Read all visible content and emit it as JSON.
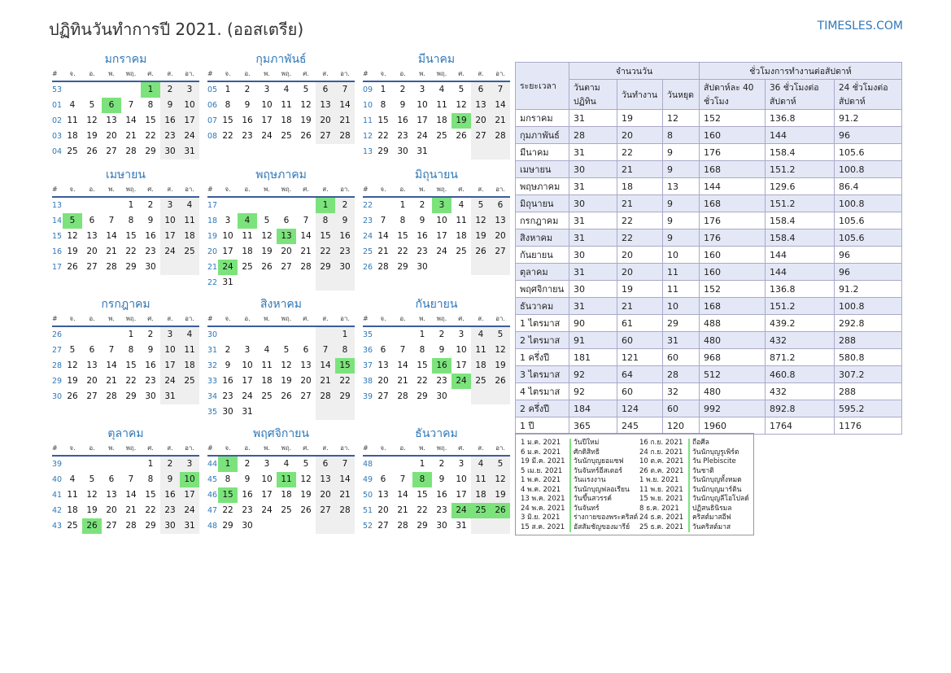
{
  "header": {
    "title": "ปฏิทินวันทำการปี 2021. (ออสเตรีย)",
    "site": "TIMESLES.COM"
  },
  "colors": {
    "accent": "#2f78b8",
    "holiday": "#7ce37c",
    "weekend": "#efefef",
    "rule": "#3b5d9b"
  },
  "weekdays": [
    "#",
    "จ.",
    "อ.",
    "พ.",
    "พฤ.",
    "ศ.",
    "ส.",
    "อา."
  ],
  "months": [
    {
      "name": "มกราคม",
      "rows": [
        [
          "53",
          "",
          "",
          "",
          "",
          "1",
          "2",
          "3"
        ],
        [
          "01",
          "4",
          "5",
          "6",
          "7",
          "8",
          "9",
          "10"
        ],
        [
          "02",
          "11",
          "12",
          "13",
          "14",
          "15",
          "16",
          "17"
        ],
        [
          "03",
          "18",
          "19",
          "20",
          "21",
          "22",
          "23",
          "24"
        ],
        [
          "04",
          "25",
          "26",
          "27",
          "28",
          "29",
          "30",
          "31"
        ]
      ],
      "hol": [
        "0-5",
        "1-3"
      ]
    },
    {
      "name": "กุมภาพันธ์",
      "rows": [
        [
          "05",
          "1",
          "2",
          "3",
          "4",
          "5",
          "6",
          "7"
        ],
        [
          "06",
          "8",
          "9",
          "10",
          "11",
          "12",
          "13",
          "14"
        ],
        [
          "07",
          "15",
          "16",
          "17",
          "18",
          "19",
          "20",
          "21"
        ],
        [
          "08",
          "22",
          "23",
          "24",
          "25",
          "26",
          "27",
          "28"
        ]
      ],
      "hol": []
    },
    {
      "name": "มีนาคม",
      "rows": [
        [
          "09",
          "1",
          "2",
          "3",
          "4",
          "5",
          "6",
          "7"
        ],
        [
          "10",
          "8",
          "9",
          "10",
          "11",
          "12",
          "13",
          "14"
        ],
        [
          "11",
          "15",
          "16",
          "17",
          "18",
          "19",
          "20",
          "21"
        ],
        [
          "12",
          "22",
          "23",
          "24",
          "25",
          "26",
          "27",
          "28"
        ],
        [
          "13",
          "29",
          "30",
          "31",
          "",
          "",
          "",
          ""
        ]
      ],
      "hol": [
        "2-5"
      ]
    },
    {
      "name": "เมษายน",
      "rows": [
        [
          "13",
          "",
          "",
          "",
          "1",
          "2",
          "3",
          "4"
        ],
        [
          "14",
          "5",
          "6",
          "7",
          "8",
          "9",
          "10",
          "11"
        ],
        [
          "15",
          "12",
          "13",
          "14",
          "15",
          "16",
          "17",
          "18"
        ],
        [
          "16",
          "19",
          "20",
          "21",
          "22",
          "23",
          "24",
          "25"
        ],
        [
          "17",
          "26",
          "27",
          "28",
          "29",
          "30",
          "",
          ""
        ]
      ],
      "hol": [
        "1-1"
      ]
    },
    {
      "name": "พฤษภาคม",
      "rows": [
        [
          "17",
          "",
          "",
          "",
          "",
          "",
          "1",
          "2"
        ],
        [
          "18",
          "3",
          "4",
          "5",
          "6",
          "7",
          "8",
          "9"
        ],
        [
          "19",
          "10",
          "11",
          "12",
          "13",
          "14",
          "15",
          "16"
        ],
        [
          "20",
          "17",
          "18",
          "19",
          "20",
          "21",
          "22",
          "23"
        ],
        [
          "21",
          "24",
          "25",
          "26",
          "27",
          "28",
          "29",
          "30"
        ],
        [
          "22",
          "31",
          "",
          "",
          "",
          "",
          "",
          ""
        ]
      ],
      "hol": [
        "0-6",
        "1-2",
        "2-4",
        "4-1"
      ]
    },
    {
      "name": "มิถุนายน",
      "rows": [
        [
          "22",
          "",
          "1",
          "2",
          "3",
          "4",
          "5",
          "6"
        ],
        [
          "23",
          "7",
          "8",
          "9",
          "10",
          "11",
          "12",
          "13"
        ],
        [
          "24",
          "14",
          "15",
          "16",
          "17",
          "18",
          "19",
          "20"
        ],
        [
          "25",
          "21",
          "22",
          "23",
          "24",
          "25",
          "26",
          "27"
        ],
        [
          "26",
          "28",
          "29",
          "30",
          "",
          "",
          "",
          ""
        ]
      ],
      "hol": [
        "0-4"
      ]
    },
    {
      "name": "กรกฎาคม",
      "rows": [
        [
          "26",
          "",
          "",
          "",
          "1",
          "2",
          "3",
          "4"
        ],
        [
          "27",
          "5",
          "6",
          "7",
          "8",
          "9",
          "10",
          "11"
        ],
        [
          "28",
          "12",
          "13",
          "14",
          "15",
          "16",
          "17",
          "18"
        ],
        [
          "29",
          "19",
          "20",
          "21",
          "22",
          "23",
          "24",
          "25"
        ],
        [
          "30",
          "26",
          "27",
          "28",
          "29",
          "30",
          "31",
          ""
        ]
      ],
      "hol": []
    },
    {
      "name": "สิงหาคม",
      "rows": [
        [
          "30",
          "",
          "",
          "",
          "",
          "",
          "",
          "1"
        ],
        [
          "31",
          "2",
          "3",
          "4",
          "5",
          "6",
          "7",
          "8"
        ],
        [
          "32",
          "9",
          "10",
          "11",
          "12",
          "13",
          "14",
          "15"
        ],
        [
          "33",
          "16",
          "17",
          "18",
          "19",
          "20",
          "21",
          "22"
        ],
        [
          "34",
          "23",
          "24",
          "25",
          "26",
          "27",
          "28",
          "29"
        ],
        [
          "35",
          "30",
          "31",
          "",
          "",
          "",
          "",
          ""
        ]
      ],
      "hol": [
        "2-7"
      ]
    },
    {
      "name": "กันยายน",
      "rows": [
        [
          "35",
          "",
          "",
          "1",
          "2",
          "3",
          "4",
          "5"
        ],
        [
          "36",
          "6",
          "7",
          "8",
          "9",
          "10",
          "11",
          "12"
        ],
        [
          "37",
          "13",
          "14",
          "15",
          "16",
          "17",
          "18",
          "19"
        ],
        [
          "38",
          "20",
          "21",
          "22",
          "23",
          "24",
          "25",
          "26"
        ],
        [
          "39",
          "27",
          "28",
          "29",
          "30",
          "",
          "",
          ""
        ]
      ],
      "hol": [
        "2-4",
        "3-5"
      ]
    },
    {
      "name": "ตุลาคม",
      "rows": [
        [
          "39",
          "",
          "",
          "",
          "",
          "1",
          "2",
          "3"
        ],
        [
          "40",
          "4",
          "5",
          "6",
          "7",
          "8",
          "9",
          "10"
        ],
        [
          "41",
          "11",
          "12",
          "13",
          "14",
          "15",
          "16",
          "17"
        ],
        [
          "42",
          "18",
          "19",
          "20",
          "21",
          "22",
          "23",
          "24"
        ],
        [
          "43",
          "25",
          "26",
          "27",
          "28",
          "29",
          "30",
          "31"
        ]
      ],
      "hol": [
        "1-7",
        "4-2"
      ]
    },
    {
      "name": "พฤศจิกายน",
      "rows": [
        [
          "44",
          "1",
          "2",
          "3",
          "4",
          "5",
          "6",
          "7"
        ],
        [
          "45",
          "8",
          "9",
          "10",
          "11",
          "12",
          "13",
          "14"
        ],
        [
          "46",
          "15",
          "16",
          "17",
          "18",
          "19",
          "20",
          "21"
        ],
        [
          "47",
          "22",
          "23",
          "24",
          "25",
          "26",
          "27",
          "28"
        ],
        [
          "48",
          "29",
          "30",
          "",
          "",
          "",
          "",
          ""
        ]
      ],
      "hol": [
        "0-1",
        "1-4",
        "2-1"
      ]
    },
    {
      "name": "ธันวาคม",
      "rows": [
        [
          "48",
          "",
          "",
          "1",
          "2",
          "3",
          "4",
          "5"
        ],
        [
          "49",
          "6",
          "7",
          "8",
          "9",
          "10",
          "11",
          "12"
        ],
        [
          "50",
          "13",
          "14",
          "15",
          "16",
          "17",
          "18",
          "19"
        ],
        [
          "51",
          "20",
          "21",
          "22",
          "23",
          "24",
          "25",
          "26"
        ],
        [
          "52",
          "27",
          "28",
          "29",
          "30",
          "31",
          "",
          ""
        ]
      ],
      "hol": [
        "1-3",
        "3-5",
        "3-6",
        "3-7"
      ]
    }
  ],
  "hours_table": {
    "h_period": "ระยะเวลา",
    "h_days": "จำนวนวัน",
    "h_hours": "ชั่วโมงการทำงานต่อสัปดาห์",
    "h_cal": "วันตามปฏิทิน",
    "h_work": "วันทำงาน",
    "h_off": "วันหยุด",
    "h_40": "สัปดาห์ละ 40 ชั่วโมง",
    "h_36": "36 ชั่วโมงต่อสัปดาห์",
    "h_24": "24 ชั่วโมงต่อสัปดาห์",
    "rows": [
      [
        "มกราคม",
        "31",
        "19",
        "12",
        "152",
        "136.8",
        "91.2"
      ],
      [
        "กุมภาพันธ์",
        "28",
        "20",
        "8",
        "160",
        "144",
        "96"
      ],
      [
        "มีนาคม",
        "31",
        "22",
        "9",
        "176",
        "158.4",
        "105.6"
      ],
      [
        "เมษายน",
        "30",
        "21",
        "9",
        "168",
        "151.2",
        "100.8"
      ],
      [
        "พฤษภาคม",
        "31",
        "18",
        "13",
        "144",
        "129.6",
        "86.4"
      ],
      [
        "มิถุนายน",
        "30",
        "21",
        "9",
        "168",
        "151.2",
        "100.8"
      ],
      [
        "กรกฎาคม",
        "31",
        "22",
        "9",
        "176",
        "158.4",
        "105.6"
      ],
      [
        "สิงหาคม",
        "31",
        "22",
        "9",
        "176",
        "158.4",
        "105.6"
      ],
      [
        "กันยายน",
        "30",
        "20",
        "10",
        "160",
        "144",
        "96"
      ],
      [
        "ตุลาคม",
        "31",
        "20",
        "11",
        "160",
        "144",
        "96"
      ],
      [
        "พฤศจิกายน",
        "30",
        "19",
        "11",
        "152",
        "136.8",
        "91.2"
      ],
      [
        "ธันวาคม",
        "31",
        "21",
        "10",
        "168",
        "151.2",
        "100.8"
      ],
      [
        "1 ไตรมาส",
        "90",
        "61",
        "29",
        "488",
        "439.2",
        "292.8"
      ],
      [
        "2 ไตรมาส",
        "91",
        "60",
        "31",
        "480",
        "432",
        "288"
      ],
      [
        "1 ครึ่งปี",
        "181",
        "121",
        "60",
        "968",
        "871.2",
        "580.8"
      ],
      [
        "3 ไตรมาส",
        "92",
        "64",
        "28",
        "512",
        "460.8",
        "307.2"
      ],
      [
        "4 ไตรมาส",
        "92",
        "60",
        "32",
        "480",
        "432",
        "288"
      ],
      [
        "2 ครึ่งปี",
        "184",
        "124",
        "60",
        "992",
        "892.8",
        "595.2"
      ],
      [
        "1 ปี",
        "365",
        "245",
        "120",
        "1960",
        "1764",
        "1176"
      ]
    ]
  },
  "holidays": [
    [
      "1 ม.ค. 2021",
      "วันปีใหม่"
    ],
    [
      "6 ม.ค. 2021",
      "ศักดิสิทธิ"
    ],
    [
      "19 มี.ค. 2021",
      "วันนักบุญยอแซฟ"
    ],
    [
      "5 เม.ย. 2021",
      "วันจันทร์อีสเตอร์"
    ],
    [
      "1 พ.ค. 2021",
      "วันแรงงาน"
    ],
    [
      "4 พ.ค. 2021",
      "วันนักบุญฟลอเรียน"
    ],
    [
      "13 พ.ค. 2021",
      "วันขึ้นสวรรค์"
    ],
    [
      "24 พ.ค. 2021",
      "วันจันทร์"
    ],
    [
      "3 มิ.ย. 2021",
      "ร่างกายของพระคริสต์"
    ],
    [
      "15 ส.ค. 2021",
      "อัสสัมชัญของมารีย์"
    ],
    [
      "16 ก.ย. 2021",
      "ถือศีล"
    ],
    [
      "24 ก.ย. 2021",
      "วันนักบุญรูเพิร์ต"
    ],
    [
      "10 ต.ค. 2021",
      "วัน Plebiscite"
    ],
    [
      "26 ต.ค. 2021",
      "วันชาติ"
    ],
    [
      "1 พ.ย. 2021",
      "วันนักบุญทั้งหมด"
    ],
    [
      "11 พ.ย. 2021",
      "วันนักบุญมาร์ติน"
    ],
    [
      "15 พ.ย. 2021",
      "วันนักบุญลีโอโปลด์"
    ],
    [
      "8 ธ.ค. 2021",
      "ปฏิสนธินิรมล"
    ],
    [
      "24 ธ.ค. 2021",
      "คริสต์มาสอีฟ"
    ],
    [
      "25 ธ.ค. 2021",
      "วันคริสต์มาส"
    ]
  ]
}
